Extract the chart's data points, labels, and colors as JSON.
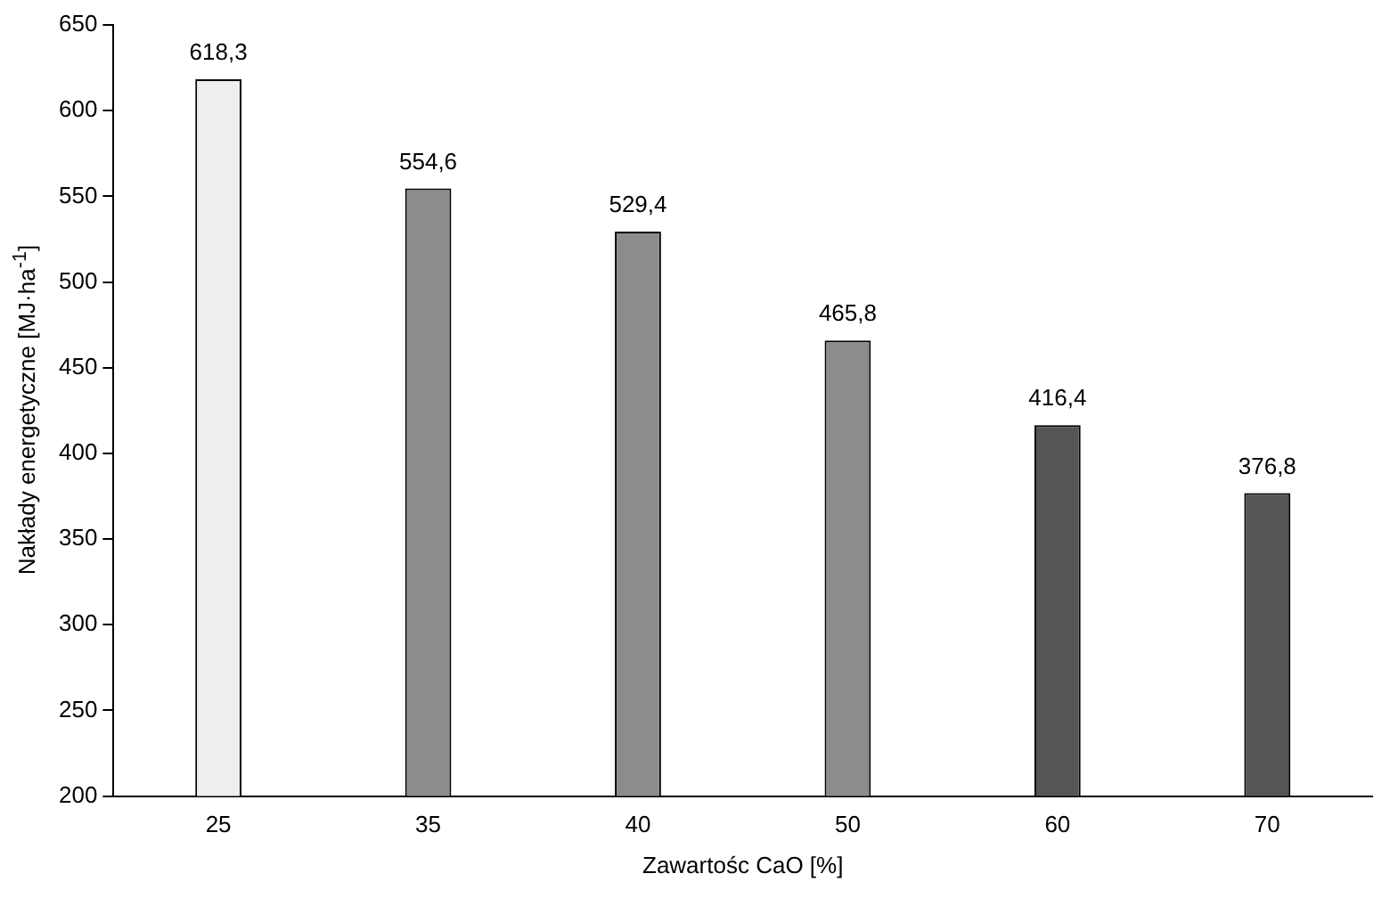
{
  "chart_data": {
    "type": "bar",
    "xlabel": "Zawartośc CaO [%]",
    "ylabel": "Nakłady energetyczne [MJ·ha$^{-1}$]",
    "categories": [
      "25",
      "35",
      "40",
      "50",
      "60",
      "70"
    ],
    "values": [
      618.3,
      554.6,
      529.4,
      465.8,
      416.4,
      376.8
    ],
    "colors": [
      "#eeeeee",
      "#8c8c8c",
      "#8c8c8c",
      "#8c8c8c",
      "#555555",
      "#555555"
    ],
    "value_labels": [
      "618,3",
      "554,6",
      "529,4",
      "465,8",
      "416,4",
      "376,8"
    ],
    "ylim": [
      200,
      650
    ],
    "yticks": [
      200,
      250,
      300,
      350,
      400,
      450,
      500,
      550,
      600,
      650
    ],
    "grid": false,
    "legend": false
  }
}
